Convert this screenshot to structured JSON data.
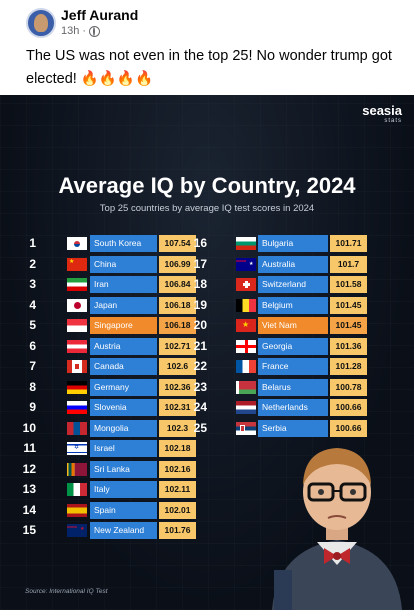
{
  "post": {
    "author": "Jeff Aurand",
    "time": "13h",
    "separator": "·",
    "text": "The US was not even in the top 25! No wonder trump got elected! 🔥🔥🔥🔥"
  },
  "infographic": {
    "brand": "seasia",
    "brand_sub": "stats",
    "title": "Average IQ by Country, 2024",
    "subtitle": "Top 25 countries by average IQ test scores in 2024",
    "source": "Source: International IQ Test"
  },
  "chart_data": {
    "type": "table",
    "title": "Average IQ by Country, 2024",
    "subtitle": "Top 25 countries by average IQ test scores in 2024",
    "rows": [
      {
        "rank": "1",
        "country": "South Korea",
        "score": "107.54"
      },
      {
        "rank": "2",
        "country": "China",
        "score": "106.99"
      },
      {
        "rank": "3",
        "country": "Iran",
        "score": "106.84"
      },
      {
        "rank": "4",
        "country": "Japan",
        "score": "106.18"
      },
      {
        "rank": "5",
        "country": "Singapore",
        "score": "106.18"
      },
      {
        "rank": "6",
        "country": "Austria",
        "score": "102.71"
      },
      {
        "rank": "7",
        "country": "Canada",
        "score": "102.6"
      },
      {
        "rank": "8",
        "country": "Germany",
        "score": "102.36"
      },
      {
        "rank": "9",
        "country": "Slovenia",
        "score": "102.31"
      },
      {
        "rank": "10",
        "country": "Mongolia",
        "score": "102.3"
      },
      {
        "rank": "11",
        "country": "Israel",
        "score": "102.18"
      },
      {
        "rank": "12",
        "country": "Sri Lanka",
        "score": "102.16"
      },
      {
        "rank": "13",
        "country": "Italy",
        "score": "102.11"
      },
      {
        "rank": "14",
        "country": "Spain",
        "score": "102.01"
      },
      {
        "rank": "15",
        "country": "New Zealand",
        "score": "101.76"
      },
      {
        "rank": "16",
        "country": "Bulgaria",
        "score": "101.71"
      },
      {
        "rank": "17",
        "country": "Australia",
        "score": "101.7"
      },
      {
        "rank": "18",
        "country": "Switzerland",
        "score": "101.58"
      },
      {
        "rank": "19",
        "country": "Belgium",
        "score": "101.45"
      },
      {
        "rank": "20",
        "country": "Viet Nam",
        "score": "101.45"
      },
      {
        "rank": "21",
        "country": "Georgia",
        "score": "101.36"
      },
      {
        "rank": "22",
        "country": "France",
        "score": "101.28"
      },
      {
        "rank": "23",
        "country": "Belarus",
        "score": "100.78"
      },
      {
        "rank": "24",
        "country": "Netherlands",
        "score": "100.66"
      },
      {
        "rank": "25",
        "country": "Serbia",
        "score": "100.66"
      }
    ],
    "highlighted_ranks": [
      "5",
      "20"
    ],
    "colors": {
      "country_bar": "#2e7fd6",
      "country_bar_highlight": "#f08a2b",
      "score_bar": "#f7c76a",
      "score_bar_highlight": "#f4a446"
    }
  }
}
